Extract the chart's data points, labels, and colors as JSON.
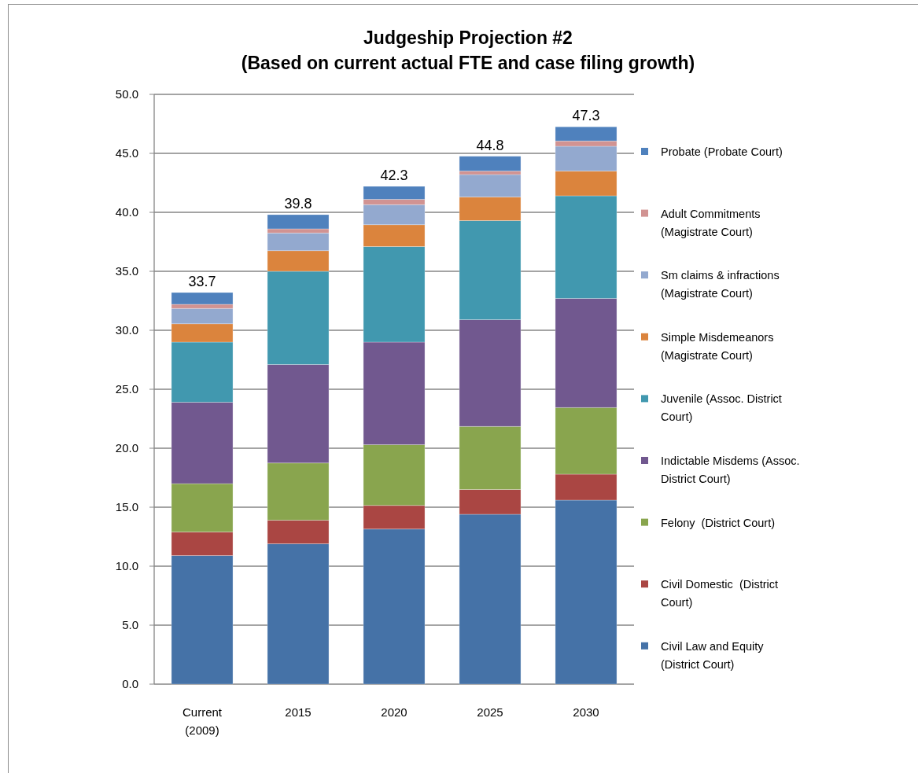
{
  "chart_data": {
    "type": "bar",
    "title": "Judgeship Projection #2",
    "subtitle": "(Based on current actual FTE and case filing growth)",
    "categories": [
      "Current (2009)",
      "2015",
      "2020",
      "2025",
      "2030"
    ],
    "stacked": true,
    "series": [
      {
        "name": "Civil Law and Equity (District Court)",
        "color": "#4572a7",
        "values": [
          10.9,
          11.9,
          13.15,
          14.4,
          15.6
        ]
      },
      {
        "name": "Civil Domestic  (District Court)",
        "color": "#aa4643",
        "values": [
          2.0,
          2.0,
          2.0,
          2.1,
          2.2
        ]
      },
      {
        "name": "Felony  (District Court)",
        "color": "#89a54e",
        "values": [
          4.1,
          4.85,
          5.15,
          5.35,
          5.65
        ]
      },
      {
        "name": "Indictable Misdems (Assoc. District Court)",
        "color": "#71588f",
        "values": [
          6.9,
          8.35,
          8.7,
          9.05,
          9.25
        ]
      },
      {
        "name": "Juvenile (Assoc. District Court)",
        "color": "#4198af",
        "values": [
          5.1,
          7.9,
          8.1,
          8.4,
          8.7
        ]
      },
      {
        "name": "Simple Misdemeanors (Magistrate Court)",
        "color": "#db843d",
        "values": [
          1.55,
          1.75,
          1.85,
          2.0,
          2.1
        ]
      },
      {
        "name": "Sm claims & infractions (Magistrate Court)",
        "color": "#93a9cf",
        "values": [
          1.3,
          1.5,
          1.7,
          1.9,
          2.1
        ]
      },
      {
        "name": "Adult Commitments (Magistrate Court)",
        "color": "#d19392",
        "values": [
          0.35,
          0.35,
          0.45,
          0.3,
          0.45
        ]
      },
      {
        "name": "Probate (Probate Court)",
        "color": "#4f81bd",
        "values": [
          1.0,
          1.2,
          1.1,
          1.25,
          1.2
        ]
      }
    ],
    "totals": [
      "33.7",
      "39.8",
      "42.3",
      "44.8",
      "47.3"
    ],
    "ylim": [
      0,
      50
    ],
    "yticks": [
      {
        "value": 0,
        "label": "0.0"
      },
      {
        "value": 5,
        "label": "5.0"
      },
      {
        "value": 10,
        "label": "10.0"
      },
      {
        "value": 15,
        "label": "15.0"
      },
      {
        "value": 20,
        "label": "20.0"
      },
      {
        "value": 25,
        "label": "25.0"
      },
      {
        "value": 30,
        "label": "30.0"
      },
      {
        "value": 35,
        "label": "35.0"
      },
      {
        "value": 40,
        "label": "40.0"
      },
      {
        "value": 45,
        "label": "45.0"
      },
      {
        "value": 50,
        "label": "50.0"
      }
    ],
    "grid": "y",
    "legend": "right"
  }
}
